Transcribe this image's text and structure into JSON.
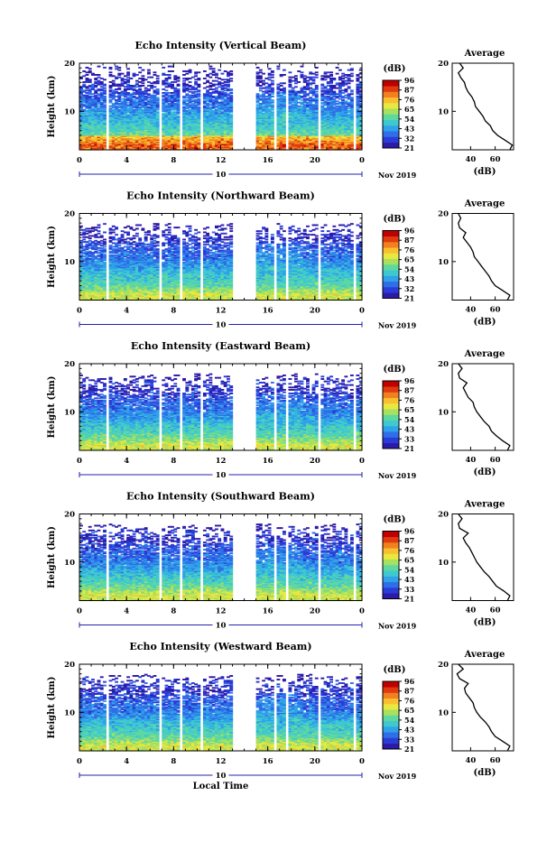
{
  "figure": {
    "xlabel": "Local Time",
    "ylabel": "Height (km)",
    "x_ticks": [
      "0",
      "4",
      "8",
      "12",
      "16",
      "20",
      "0"
    ],
    "y_ticks": [
      "20",
      "10"
    ],
    "date_tick": "10",
    "date_label": "Nov 2019",
    "colorbar_unit": "(dB)",
    "colorbar_ticks": [
      "96",
      "87",
      "76",
      "65",
      "54",
      "43",
      "32",
      "21"
    ],
    "avg_title": "Average",
    "avg_xlabel": "(dB)",
    "avg_x_ticks": [
      "40",
      "60"
    ],
    "colors": {
      "scale": [
        "#2c1aa8",
        "#2a3cd6",
        "#2f6ee8",
        "#2fa2e8",
        "#3fc8d0",
        "#5fd8a0",
        "#a8e060",
        "#e8e840",
        "#f8c030",
        "#f08020",
        "#e03a10",
        "#c00000"
      ]
    }
  },
  "panels": [
    {
      "title": "Echo Intensity (Vertical Beam)",
      "colorbar_ticks": [
        "96",
        "87",
        "76",
        "65",
        "54",
        "43",
        "32",
        "21"
      ]
    },
    {
      "title": "Echo Intensity (Northward Beam)",
      "colorbar_ticks": [
        "96",
        "87",
        "76",
        "65",
        "54",
        "43",
        "32",
        "21"
      ]
    },
    {
      "title": "Echo Intensity (Eastward Beam)",
      "colorbar_ticks": [
        "96",
        "87",
        "76",
        "65",
        "54",
        "43",
        "33",
        "21"
      ]
    },
    {
      "title": "Echo Intensity (Southward Beam)",
      "colorbar_ticks": [
        "96",
        "87",
        "76",
        "65",
        "54",
        "43",
        "33",
        "21"
      ]
    },
    {
      "title": "Echo Intensity (Westward Beam)",
      "colorbar_ticks": [
        "96",
        "87",
        "76",
        "65",
        "54",
        "43",
        "33",
        "21"
      ]
    }
  ],
  "chart_data": [
    {
      "type": "heatmap",
      "title": "Echo Intensity (Vertical Beam)",
      "xlabel": "",
      "ylabel": "Height (km)",
      "xlim": [
        0,
        24
      ],
      "ylim": [
        2,
        20
      ],
      "colorbar_unit": "(dB)",
      "colorbar_range": [
        21,
        96
      ],
      "data_gaps_hours": [
        [
          2.2,
          2.6
        ],
        [
          6.7,
          7.0
        ],
        [
          7.9,
          8.1
        ],
        [
          8.6,
          8.8
        ],
        [
          10.3,
          10.5
        ],
        [
          11.7,
          11.8
        ],
        [
          12.5,
          12.6
        ],
        [
          13.0,
          15.0
        ],
        [
          16.6,
          16.8
        ],
        [
          17.6,
          17.8
        ],
        [
          20.3,
          20.5
        ],
        [
          23.2,
          23.4
        ]
      ],
      "average_profile": {
        "title": "Average",
        "xlabel": "(dB)",
        "xlim": [
          25,
          75
        ],
        "ylim": [
          2,
          20
        ],
        "height_km": [
          2,
          3,
          4,
          5,
          6,
          7,
          8,
          9,
          10,
          11,
          12,
          13,
          14,
          15,
          16,
          17,
          18,
          19,
          20
        ],
        "db": [
          72,
          74,
          68,
          62,
          58,
          56,
          52,
          50,
          47,
          44,
          43,
          41,
          38,
          36,
          35,
          32,
          30,
          34,
          31
        ]
      }
    },
    {
      "type": "heatmap",
      "title": "Echo Intensity (Northward Beam)",
      "xlabel": "",
      "ylabel": "Height (km)",
      "xlim": [
        0,
        24
      ],
      "ylim": [
        2,
        20
      ],
      "colorbar_unit": "(dB)",
      "colorbar_range": [
        21,
        96
      ],
      "data_gaps_hours": [
        [
          2.2,
          2.6
        ],
        [
          6.7,
          7.0
        ],
        [
          7.9,
          8.1
        ],
        [
          8.6,
          8.8
        ],
        [
          10.3,
          10.5
        ],
        [
          11.7,
          11.8
        ],
        [
          12.5,
          12.6
        ],
        [
          13.0,
          15.0
        ],
        [
          16.6,
          16.8
        ],
        [
          17.6,
          17.8
        ],
        [
          20.3,
          20.5
        ],
        [
          23.2,
          23.4
        ]
      ],
      "average_profile": {
        "title": "Average",
        "xlabel": "(dB)",
        "xlim": [
          25,
          75
        ],
        "ylim": [
          2,
          20
        ],
        "height_km": [
          2,
          3,
          4,
          5,
          6,
          7,
          8,
          9,
          10,
          11,
          12,
          13,
          14,
          15,
          16,
          17,
          18,
          19,
          20
        ],
        "db": [
          70,
          72,
          66,
          60,
          57,
          55,
          52,
          49,
          46,
          43,
          42,
          40,
          37,
          34,
          36,
          31,
          30,
          32,
          30
        ]
      }
    },
    {
      "type": "heatmap",
      "title": "Echo Intensity (Eastward Beam)",
      "xlabel": "",
      "ylabel": "Height (km)",
      "xlim": [
        0,
        24
      ],
      "ylim": [
        2,
        20
      ],
      "colorbar_unit": "(dB)",
      "colorbar_range": [
        21,
        96
      ],
      "data_gaps_hours": [
        [
          2.2,
          2.6
        ],
        [
          6.7,
          7.0
        ],
        [
          7.9,
          8.1
        ],
        [
          8.6,
          8.8
        ],
        [
          10.3,
          10.5
        ],
        [
          11.7,
          11.8
        ],
        [
          12.5,
          12.6
        ],
        [
          13.0,
          15.0
        ],
        [
          16.6,
          16.8
        ],
        [
          17.6,
          17.8
        ],
        [
          20.3,
          20.5
        ],
        [
          23.2,
          23.4
        ]
      ],
      "average_profile": {
        "title": "Average",
        "xlabel": "(dB)",
        "xlim": [
          25,
          75
        ],
        "ylim": [
          2,
          20
        ],
        "height_km": [
          2,
          3,
          4,
          5,
          6,
          7,
          8,
          9,
          10,
          11,
          12,
          13,
          14,
          15,
          16,
          17,
          18,
          19,
          20
        ],
        "db": [
          70,
          72,
          66,
          61,
          57,
          55,
          51,
          48,
          45,
          43,
          42,
          38,
          36,
          34,
          37,
          31,
          30,
          33,
          30
        ]
      }
    },
    {
      "type": "heatmap",
      "title": "Echo Intensity (Southward Beam)",
      "xlabel": "",
      "ylabel": "Height (km)",
      "xlim": [
        0,
        24
      ],
      "ylim": [
        2,
        20
      ],
      "colorbar_unit": "(dB)",
      "colorbar_range": [
        21,
        96
      ],
      "data_gaps_hours": [
        [
          2.2,
          2.6
        ],
        [
          6.7,
          7.0
        ],
        [
          7.9,
          8.1
        ],
        [
          8.6,
          8.8
        ],
        [
          10.3,
          10.5
        ],
        [
          11.7,
          11.8
        ],
        [
          12.5,
          12.6
        ],
        [
          13.0,
          15.0
        ],
        [
          16.6,
          16.8
        ],
        [
          17.6,
          17.8
        ],
        [
          20.3,
          20.5
        ],
        [
          23.2,
          23.4
        ]
      ],
      "average_profile": {
        "title": "Average",
        "xlabel": "(dB)",
        "xlim": [
          25,
          75
        ],
        "ylim": [
          2,
          20
        ],
        "height_km": [
          2,
          3,
          4,
          5,
          6,
          7,
          8,
          9,
          10,
          11,
          12,
          13,
          14,
          15,
          16,
          17,
          18,
          19,
          20
        ],
        "db": [
          70,
          72,
          67,
          61,
          58,
          55,
          51,
          48,
          45,
          43,
          41,
          39,
          36,
          34,
          38,
          31,
          30,
          33,
          30
        ]
      }
    },
    {
      "type": "heatmap",
      "title": "Echo Intensity (Westward Beam)",
      "xlabel": "Local Time",
      "ylabel": "Height (km)",
      "xlim": [
        0,
        24
      ],
      "ylim": [
        2,
        20
      ],
      "colorbar_unit": "(dB)",
      "colorbar_range": [
        21,
        96
      ],
      "data_gaps_hours": [
        [
          2.2,
          2.6
        ],
        [
          6.7,
          7.0
        ],
        [
          7.9,
          8.1
        ],
        [
          8.6,
          8.8
        ],
        [
          10.3,
          10.5
        ],
        [
          11.7,
          11.8
        ],
        [
          12.5,
          12.6
        ],
        [
          13.0,
          15.0
        ],
        [
          16.6,
          16.8
        ],
        [
          17.6,
          17.8
        ],
        [
          20.3,
          20.5
        ],
        [
          23.2,
          23.4
        ]
      ],
      "average_profile": {
        "title": "Average",
        "xlabel": "(dB)",
        "xlim": [
          25,
          75
        ],
        "ylim": [
          2,
          20
        ],
        "height_km": [
          2,
          3,
          4,
          5,
          6,
          7,
          8,
          9,
          10,
          11,
          12,
          13,
          14,
          15,
          16,
          17,
          18,
          19,
          20
        ],
        "db": [
          70,
          72,
          66,
          60,
          57,
          55,
          52,
          48,
          45,
          43,
          42,
          39,
          36,
          35,
          38,
          31,
          29,
          34,
          30
        ]
      }
    }
  ]
}
